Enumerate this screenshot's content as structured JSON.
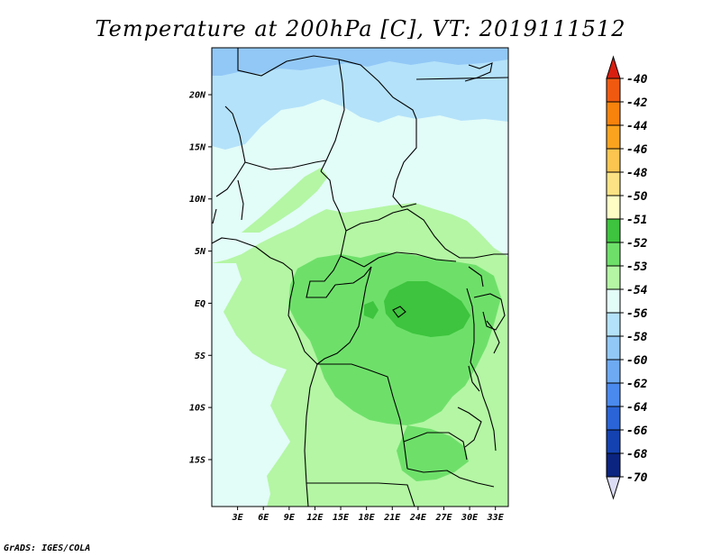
{
  "title": "Temperature at 200hPa [C], VT: 2019111512",
  "credit": "GrADS: IGES/COLA",
  "map": {
    "lon_range": [
      0,
      34.5
    ],
    "lat_range": [
      -19.5,
      24.5
    ],
    "lat_ticks": [
      {
        "value": 20,
        "label": "20N"
      },
      {
        "value": 15,
        "label": "15N"
      },
      {
        "value": 10,
        "label": "10N"
      },
      {
        "value": 5,
        "label": "5N"
      },
      {
        "value": 0,
        "label": "EQ"
      },
      {
        "value": -5,
        "label": "5S"
      },
      {
        "value": -10,
        "label": "10S"
      },
      {
        "value": -15,
        "label": "15S"
      }
    ],
    "lon_ticks": [
      {
        "value": 3,
        "label": "3E"
      },
      {
        "value": 6,
        "label": "6E"
      },
      {
        "value": 9,
        "label": "9E"
      },
      {
        "value": 12,
        "label": "12E"
      },
      {
        "value": 15,
        "label": "15E"
      },
      {
        "value": 18,
        "label": "18E"
      },
      {
        "value": 21,
        "label": "21E"
      },
      {
        "value": 24,
        "label": "24E"
      },
      {
        "value": 27,
        "label": "27E"
      },
      {
        "value": 30,
        "label": "30E"
      },
      {
        "value": 33,
        "label": "33E"
      }
    ]
  },
  "colorbar": {
    "levels": [
      {
        "label": "-40",
        "color": "#e53a14"
      },
      {
        "label": "-42",
        "color": "#f05a10"
      },
      {
        "label": "-44",
        "color": "#f7820c"
      },
      {
        "label": "-46",
        "color": "#fba31f"
      },
      {
        "label": "-48",
        "color": "#fcc550"
      },
      {
        "label": "-50",
        "color": "#fce284"
      },
      {
        "label": "-51",
        "color": "#fdfdc4"
      },
      {
        "label": "-52",
        "color": "#3ec43e"
      },
      {
        "label": "-53",
        "color": "#6ee06a"
      },
      {
        "label": "-54",
        "color": "#b4f6a4"
      },
      {
        "label": "-56",
        "color": "#e2fcf8"
      },
      {
        "label": "-58",
        "color": "#b4e2fa"
      },
      {
        "label": "-60",
        "color": "#92c8f6"
      },
      {
        "label": "-62",
        "color": "#6eaaf2"
      },
      {
        "label": "-64",
        "color": "#4a8aee"
      },
      {
        "label": "-66",
        "color": "#2a64d6"
      },
      {
        "label": "-68",
        "color": "#1442b0"
      },
      {
        "label": "-70",
        "color": "#0a2480"
      }
    ],
    "top_color": "#d81f0f",
    "bottom_color": "#dcdcf4"
  }
}
